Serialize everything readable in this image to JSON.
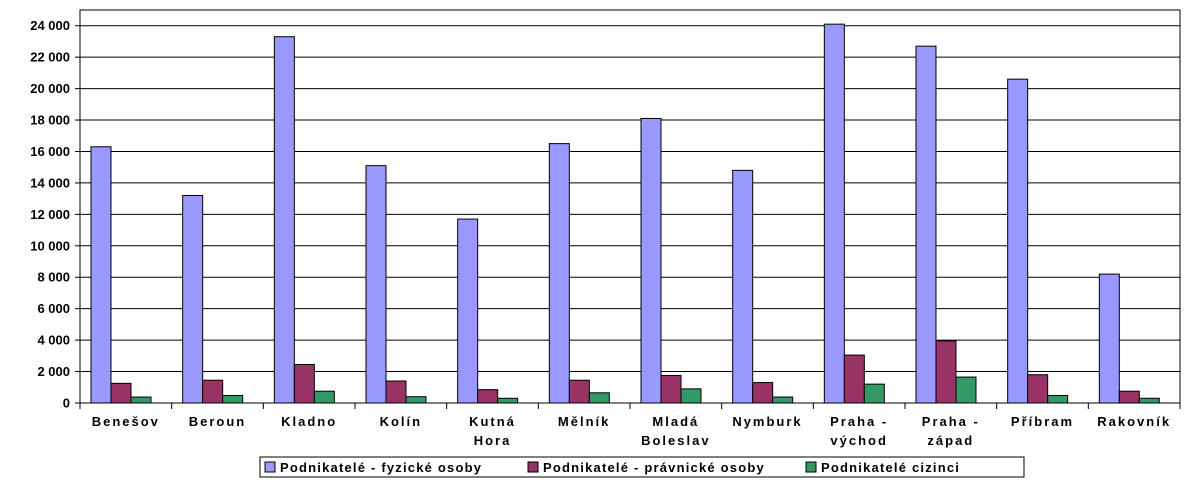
{
  "chart_data": {
    "type": "bar",
    "title": "",
    "xlabel": "",
    "ylabel": "",
    "ylim": [
      0,
      25000
    ],
    "yticks": [
      0,
      2000,
      4000,
      6000,
      8000,
      10000,
      12000,
      14000,
      16000,
      18000,
      20000,
      22000,
      24000
    ],
    "ytick_labels": [
      "0",
      "2 000",
      "4 000",
      "6 000",
      "8 000",
      "10 000",
      "12 000",
      "14 000",
      "16 000",
      "18 000",
      "20 000",
      "22 000",
      "24 000"
    ],
    "grid": true,
    "legend_position": "bottom",
    "categories": [
      [
        "Benešov"
      ],
      [
        "Beroun"
      ],
      [
        "Kladno"
      ],
      [
        "Kolín"
      ],
      [
        "Kutná",
        "Hora"
      ],
      [
        "Mělník"
      ],
      [
        "Mladá",
        "Boleslav"
      ],
      [
        "Nymburk"
      ],
      [
        "Praha -",
        "východ"
      ],
      [
        "Praha -",
        "západ"
      ],
      [
        "Příbram"
      ],
      [
        "Rakovník"
      ]
    ],
    "series": [
      {
        "name": "Podnikatelé - fyzické osoby",
        "color": "#9999ff",
        "values": [
          16300,
          13200,
          23300,
          15100,
          11700,
          16500,
          18100,
          14800,
          24100,
          22700,
          20600,
          8200
        ]
      },
      {
        "name": "Podnikatelé - právnické osoby",
        "color": "#993366",
        "values": [
          1250,
          1450,
          2450,
          1400,
          850,
          1450,
          1750,
          1300,
          3050,
          3950,
          1800,
          750
        ]
      },
      {
        "name": "Podnikatelé cizinci",
        "color": "#339966",
        "values": [
          380,
          480,
          750,
          400,
          300,
          650,
          900,
          380,
          1200,
          1650,
          480,
          300
        ]
      }
    ]
  }
}
